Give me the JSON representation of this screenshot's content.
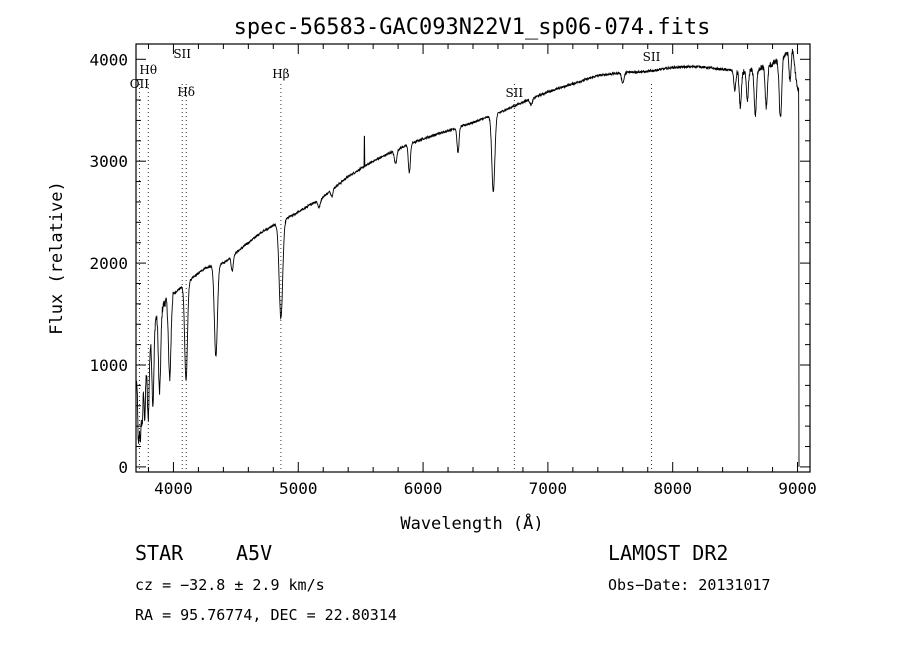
{
  "chart_data": {
    "type": "line",
    "title": "spec-56583-GAC093N22V1_sp06-074.fits",
    "xlabel": "Wavelength (Å)",
    "ylabel": "Flux (relative)",
    "xlim": [
      3700,
      9100
    ],
    "ylim": [
      -50,
      4150
    ],
    "xticks": [
      4000,
      5000,
      6000,
      7000,
      8000,
      9000
    ],
    "yticks": [
      0,
      1000,
      2000,
      3000,
      4000
    ],
    "grid": false,
    "continuum": [
      [
        3700,
        850
      ],
      [
        3780,
        1000
      ],
      [
        3850,
        1450
      ],
      [
        3950,
        1650
      ],
      [
        4100,
        1800
      ],
      [
        4250,
        1950
      ],
      [
        4400,
        2000
      ],
      [
        4500,
        2100
      ],
      [
        4700,
        2300
      ],
      [
        4850,
        2400
      ],
      [
        5000,
        2500
      ],
      [
        5200,
        2650
      ],
      [
        5400,
        2850
      ],
      [
        5600,
        3000
      ],
      [
        5800,
        3120
      ],
      [
        6000,
        3220
      ],
      [
        6200,
        3300
      ],
      [
        6400,
        3380
      ],
      [
        6600,
        3470
      ],
      [
        6800,
        3580
      ],
      [
        7000,
        3680
      ],
      [
        7200,
        3760
      ],
      [
        7400,
        3840
      ],
      [
        7600,
        3870
      ],
      [
        7800,
        3880
      ],
      [
        8000,
        3920
      ],
      [
        8200,
        3930
      ],
      [
        8400,
        3900
      ],
      [
        8600,
        3880
      ],
      [
        8800,
        3950
      ],
      [
        8900,
        4050
      ],
      [
        8960,
        4100
      ],
      [
        9000,
        3700
      ]
    ],
    "absorption_features": [
      [
        3720,
        650,
        6
      ],
      [
        3735,
        600,
        6
      ],
      [
        3750,
        500,
        6
      ],
      [
        3770,
        500,
        6
      ],
      [
        3798,
        650,
        7
      ],
      [
        3836,
        750,
        8
      ],
      [
        3889,
        800,
        9
      ],
      [
        3970,
        800,
        10
      ],
      [
        4101,
        950,
        11
      ],
      [
        4340,
        900,
        12
      ],
      [
        4471,
        150,
        8
      ],
      [
        4861,
        950,
        14
      ],
      [
        5167,
        80,
        10
      ],
      [
        5270,
        60,
        8
      ],
      [
        5780,
        130,
        10
      ],
      [
        5890,
        280,
        8
      ],
      [
        6280,
        250,
        8
      ],
      [
        6563,
        750,
        12
      ],
      [
        6867,
        60,
        10
      ],
      [
        7600,
        100,
        10
      ],
      [
        8498,
        200,
        8
      ],
      [
        8542,
        350,
        9
      ],
      [
        8598,
        300,
        8
      ],
      [
        8662,
        450,
        9
      ],
      [
        8750,
        400,
        9
      ],
      [
        8863,
        600,
        10
      ],
      [
        8940,
        300,
        8
      ]
    ],
    "line_markers": [
      {
        "label": "OII",
        "wavelength": 3727
      },
      {
        "label": "Hθ",
        "wavelength": 3798
      },
      {
        "label": "SII",
        "wavelength": 4070
      },
      {
        "label": "Hδ",
        "wavelength": 4102
      },
      {
        "label": "Hβ",
        "wavelength": 4861
      },
      {
        "label": "SII",
        "wavelength": 6731
      },
      {
        "label": "SII",
        "wavelength": 7830
      }
    ],
    "emission_spike": [
      5530,
      300
    ]
  },
  "info": {
    "object": "STAR",
    "subclass": "A5V",
    "cz": "cz = −32.8 ± 2.9 km/s",
    "radec": "RA =  95.76774, DEC =  22.80314",
    "survey": "LAMOST DR2",
    "obsdate": "Obs−Date: 20131017"
  }
}
